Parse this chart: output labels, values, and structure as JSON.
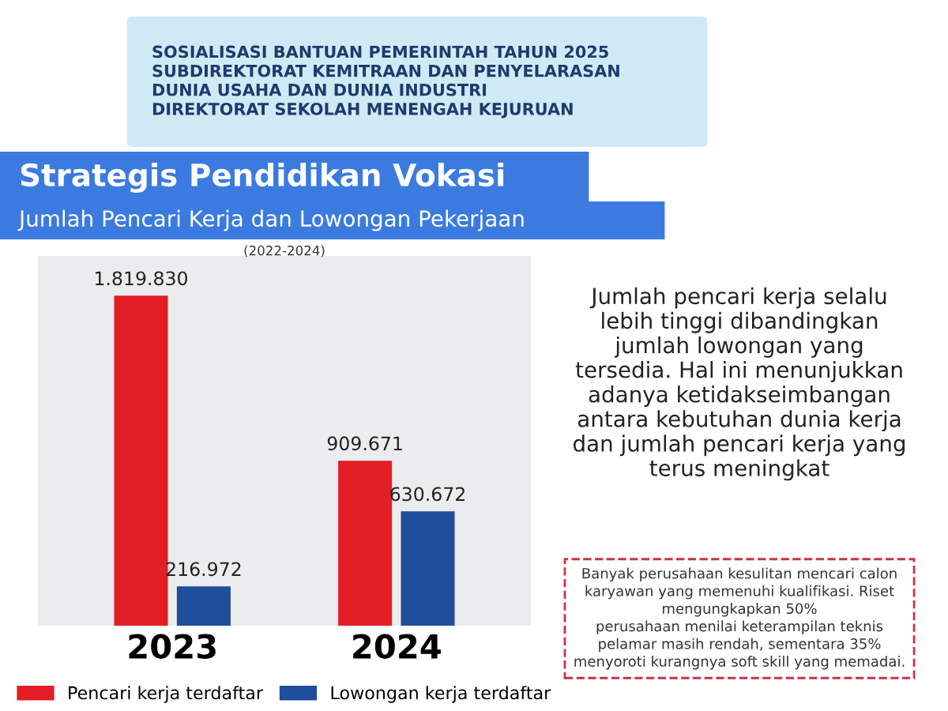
{
  "chart_data": {
    "type": "bar",
    "title": "Strategis Pendidikan Vokasi",
    "subtitle": "Jumlah Pencari Kerja dan Lowongan Pekerjaan",
    "categories": [
      "2023",
      "2024"
    ],
    "series": [
      {
        "name": "Pencari kerja terdaftar",
        "color": "#e31e26",
        "values": [
          1819830,
          909671
        ],
        "value_labels": [
          "1.819.830",
          "909.671"
        ]
      },
      {
        "name": "Lowongan kerja terdaftar",
        "color": "#1f4e9a",
        "values": [
          216972,
          630672
        ],
        "value_labels": [
          "216.972",
          "630.672"
        ]
      }
    ],
    "legend": "bottom",
    "grid": false,
    "annotations": [
      "(2022-2024)",
      "SOSIALISASI BANTUAN PEMERINTAH TAHUN 2025\nSUBDIREKTORAT KEMITRAAN DAN PENYELARASAN\nDUNIA USAHA DAN DUNIA INDUSTRI\nDIREKTORAT SEKOLAH MENENGAH KEJURUAN",
      "Jumlah pencari kerja selalu\nlebih tinggi dibandingkan\njumlah lowongan yang\ntersedia. Hal ini menunjukkan\nadanya ketidakseimbangan\nantara kebutuhan dunia kerja\ndan jumlah pencari kerja yang\nterus meningkat",
      "Banyak perusahaan kesulitan mencari calon\nkaryawan yang memenuhi kualifikasi. Riset\nmengungkapkan 50%\nperusahaan menilai keterampilan teknis\npelamar masih rendah, sementara 35%\nmenyoroti kurangnya soft skill yang memadai."
    ]
  }
}
